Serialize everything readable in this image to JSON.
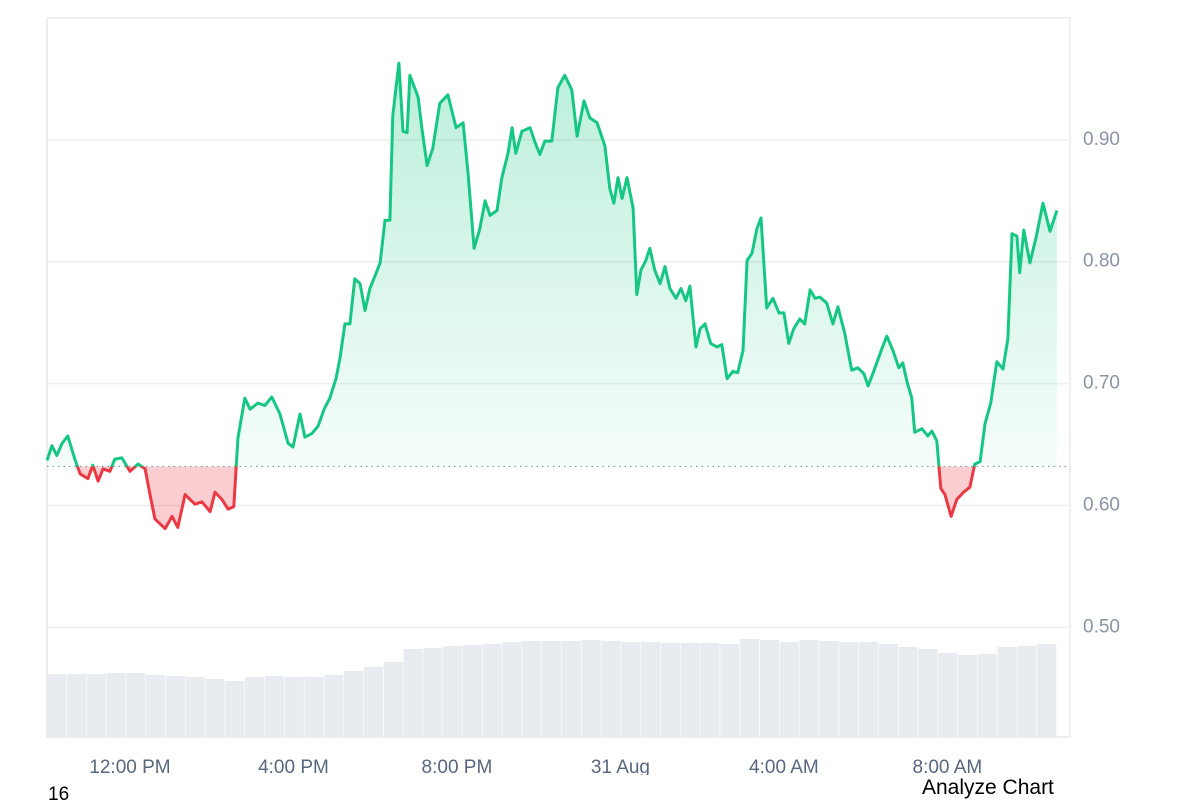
{
  "chart_data": {
    "type": "area",
    "x": [
      9.97,
      10.09,
      10.21,
      10.34,
      10.48,
      10.65,
      10.78,
      10.97,
      11.09,
      11.22,
      11.34,
      11.51,
      11.63,
      11.8,
      12.0,
      12.2,
      12.37,
      12.49,
      12.61,
      12.86,
      13.03,
      13.17,
      13.35,
      13.47,
      13.59,
      13.76,
      13.96,
      14.08,
      14.25,
      14.4,
      14.54,
      14.64,
      14.81,
      14.94,
      15.13,
      15.3,
      15.47,
      15.67,
      15.87,
      15.99,
      16.16,
      16.28,
      16.45,
      16.6,
      16.75,
      16.89,
      17.04,
      17.14,
      17.26,
      17.38,
      17.5,
      17.63,
      17.75,
      17.87,
      17.99,
      18.12,
      18.24,
      18.36,
      18.43,
      18.58,
      18.68,
      18.78,
      18.85,
      19.05,
      19.14,
      19.27,
      19.41,
      19.58,
      19.78,
      19.98,
      20.15,
      20.27,
      20.42,
      20.56,
      20.69,
      20.81,
      20.98,
      21.1,
      21.25,
      21.35,
      21.44,
      21.59,
      21.79,
      21.91,
      22.03,
      22.15,
      22.32,
      22.47,
      22.64,
      22.81,
      22.94,
      23.11,
      23.25,
      23.43,
      23.62,
      23.74,
      23.84,
      23.94,
      24.04,
      24.16,
      24.31,
      24.4,
      24.5,
      24.62,
      24.72,
      24.84,
      24.97,
      25.09,
      25.21,
      25.36,
      25.48,
      25.6,
      25.7,
      25.85,
      25.95,
      26.07,
      26.21,
      26.36,
      26.48,
      26.61,
      26.75,
      26.87,
      27.0,
      27.1,
      27.22,
      27.34,
      27.44,
      27.58,
      27.73,
      27.88,
      28.0,
      28.12,
      28.24,
      28.39,
      28.51,
      28.64,
      28.76,
      28.88,
      29.05,
      29.2,
      29.32,
      29.49,
      29.66,
      29.81,
      29.96,
      30.06,
      30.23,
      30.4,
      30.52,
      30.67,
      30.81,
      30.91,
      31.01,
      31.13,
      31.2,
      31.38,
      31.52,
      31.62,
      31.74,
      31.84,
      31.94,
      32.09,
      32.23,
      32.4,
      32.55,
      32.67,
      32.8,
      32.92,
      33.06,
      33.21,
      33.36,
      33.48,
      33.58,
      33.7,
      33.77,
      33.87,
      34.02,
      34.17,
      34.34,
      34.51,
      34.68
    ],
    "values": [
      0.637,
      0.649,
      0.641,
      0.651,
      0.657,
      0.638,
      0.626,
      0.622,
      0.633,
      0.62,
      0.63,
      0.628,
      0.638,
      0.639,
      0.628,
      0.634,
      0.63,
      0.609,
      0.589,
      0.581,
      0.591,
      0.582,
      0.609,
      0.605,
      0.601,
      0.603,
      0.595,
      0.611,
      0.605,
      0.597,
      0.599,
      0.655,
      0.688,
      0.679,
      0.684,
      0.682,
      0.689,
      0.675,
      0.651,
      0.648,
      0.675,
      0.656,
      0.659,
      0.665,
      0.679,
      0.688,
      0.704,
      0.721,
      0.749,
      0.749,
      0.786,
      0.782,
      0.76,
      0.778,
      0.788,
      0.799,
      0.834,
      0.834,
      0.92,
      0.963,
      0.907,
      0.906,
      0.953,
      0.935,
      0.91,
      0.879,
      0.893,
      0.93,
      0.937,
      0.91,
      0.914,
      0.873,
      0.811,
      0.827,
      0.85,
      0.838,
      0.842,
      0.869,
      0.889,
      0.91,
      0.889,
      0.907,
      0.91,
      0.898,
      0.888,
      0.899,
      0.899,
      0.943,
      0.953,
      0.941,
      0.903,
      0.932,
      0.918,
      0.914,
      0.895,
      0.86,
      0.848,
      0.869,
      0.852,
      0.869,
      0.844,
      0.773,
      0.793,
      0.801,
      0.811,
      0.793,
      0.782,
      0.796,
      0.778,
      0.77,
      0.778,
      0.768,
      0.78,
      0.73,
      0.745,
      0.749,
      0.733,
      0.73,
      0.732,
      0.704,
      0.71,
      0.709,
      0.727,
      0.801,
      0.807,
      0.827,
      0.836,
      0.762,
      0.77,
      0.758,
      0.758,
      0.733,
      0.745,
      0.753,
      0.749,
      0.777,
      0.77,
      0.771,
      0.766,
      0.749,
      0.763,
      0.741,
      0.711,
      0.713,
      0.708,
      0.698,
      0.713,
      0.729,
      0.739,
      0.727,
      0.713,
      0.717,
      0.702,
      0.688,
      0.66,
      0.663,
      0.657,
      0.661,
      0.653,
      0.614,
      0.609,
      0.591,
      0.605,
      0.611,
      0.615,
      0.634,
      0.636,
      0.667,
      0.684,
      0.718,
      0.712,
      0.737,
      0.823,
      0.821,
      0.791,
      0.826,
      0.799,
      0.82,
      0.848,
      0.825,
      0.842
    ],
    "reference_line": 0.632,
    "up_color": "#16c784",
    "down_color": "#ea3943",
    "xlim": [
      9.97,
      35.0
    ],
    "xticks": [
      {
        "value": 12,
        "label": "12:00 PM"
      },
      {
        "value": 16,
        "label": "4:00 PM"
      },
      {
        "value": 20,
        "label": "8:00 PM"
      },
      {
        "value": 24,
        "label": "31 Aug"
      },
      {
        "value": 28,
        "label": "4:00 AM"
      },
      {
        "value": 32,
        "label": "8:00 AM"
      }
    ],
    "ylim": [
      0.41,
      1.0
    ],
    "yticks": [
      {
        "value": 0.5,
        "label": "0.50"
      },
      {
        "value": 0.6,
        "label": "0.60"
      },
      {
        "value": 0.7,
        "label": "0.70"
      },
      {
        "value": 0.8,
        "label": "0.80"
      },
      {
        "value": 0.9,
        "label": "0.90"
      }
    ],
    "y_axis_side": "right",
    "grid": true,
    "volume": {
      "color": "#e8ecf0",
      "vlim": [
        0,
        120
      ],
      "values": [
        63,
        63,
        63,
        64,
        64,
        62,
        61,
        60,
        58,
        56,
        60,
        61,
        60,
        60,
        62,
        66,
        70,
        75,
        88,
        89,
        91,
        92,
        93,
        95,
        96,
        96,
        96,
        97,
        96,
        95,
        95,
        94,
        94,
        94,
        93,
        98,
        97,
        95,
        97,
        96,
        95,
        95,
        93,
        90,
        88,
        84,
        82,
        83,
        90,
        91,
        93
      ]
    }
  },
  "footer": {
    "left": "16",
    "button": "Analyze Chart"
  }
}
